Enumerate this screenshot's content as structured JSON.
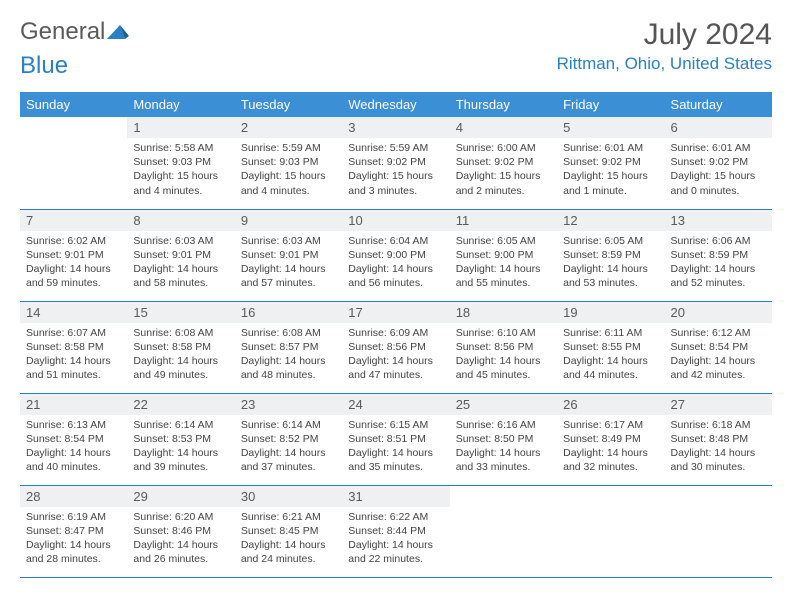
{
  "logo": {
    "text1": "General",
    "text2": "Blue"
  },
  "title": "July 2024",
  "location": "Rittman, Ohio, United States",
  "colors": {
    "header_bg": "#3b8fd4",
    "accent": "#2b7fc3",
    "daynum_bg": "#eef0f2",
    "text": "#444444"
  },
  "daysOfWeek": [
    "Sunday",
    "Monday",
    "Tuesday",
    "Wednesday",
    "Thursday",
    "Friday",
    "Saturday"
  ],
  "weeks": [
    [
      {
        "n": "",
        "l1": "",
        "l2": "",
        "l3": "",
        "l4": ""
      },
      {
        "n": "1",
        "l1": "Sunrise: 5:58 AM",
        "l2": "Sunset: 9:03 PM",
        "l3": "Daylight: 15 hours",
        "l4": "and 4 minutes."
      },
      {
        "n": "2",
        "l1": "Sunrise: 5:59 AM",
        "l2": "Sunset: 9:03 PM",
        "l3": "Daylight: 15 hours",
        "l4": "and 4 minutes."
      },
      {
        "n": "3",
        "l1": "Sunrise: 5:59 AM",
        "l2": "Sunset: 9:02 PM",
        "l3": "Daylight: 15 hours",
        "l4": "and 3 minutes."
      },
      {
        "n": "4",
        "l1": "Sunrise: 6:00 AM",
        "l2": "Sunset: 9:02 PM",
        "l3": "Daylight: 15 hours",
        "l4": "and 2 minutes."
      },
      {
        "n": "5",
        "l1": "Sunrise: 6:01 AM",
        "l2": "Sunset: 9:02 PM",
        "l3": "Daylight: 15 hours",
        "l4": "and 1 minute."
      },
      {
        "n": "6",
        "l1": "Sunrise: 6:01 AM",
        "l2": "Sunset: 9:02 PM",
        "l3": "Daylight: 15 hours",
        "l4": "and 0 minutes."
      }
    ],
    [
      {
        "n": "7",
        "l1": "Sunrise: 6:02 AM",
        "l2": "Sunset: 9:01 PM",
        "l3": "Daylight: 14 hours",
        "l4": "and 59 minutes."
      },
      {
        "n": "8",
        "l1": "Sunrise: 6:03 AM",
        "l2": "Sunset: 9:01 PM",
        "l3": "Daylight: 14 hours",
        "l4": "and 58 minutes."
      },
      {
        "n": "9",
        "l1": "Sunrise: 6:03 AM",
        "l2": "Sunset: 9:01 PM",
        "l3": "Daylight: 14 hours",
        "l4": "and 57 minutes."
      },
      {
        "n": "10",
        "l1": "Sunrise: 6:04 AM",
        "l2": "Sunset: 9:00 PM",
        "l3": "Daylight: 14 hours",
        "l4": "and 56 minutes."
      },
      {
        "n": "11",
        "l1": "Sunrise: 6:05 AM",
        "l2": "Sunset: 9:00 PM",
        "l3": "Daylight: 14 hours",
        "l4": "and 55 minutes."
      },
      {
        "n": "12",
        "l1": "Sunrise: 6:05 AM",
        "l2": "Sunset: 8:59 PM",
        "l3": "Daylight: 14 hours",
        "l4": "and 53 minutes."
      },
      {
        "n": "13",
        "l1": "Sunrise: 6:06 AM",
        "l2": "Sunset: 8:59 PM",
        "l3": "Daylight: 14 hours",
        "l4": "and 52 minutes."
      }
    ],
    [
      {
        "n": "14",
        "l1": "Sunrise: 6:07 AM",
        "l2": "Sunset: 8:58 PM",
        "l3": "Daylight: 14 hours",
        "l4": "and 51 minutes."
      },
      {
        "n": "15",
        "l1": "Sunrise: 6:08 AM",
        "l2": "Sunset: 8:58 PM",
        "l3": "Daylight: 14 hours",
        "l4": "and 49 minutes."
      },
      {
        "n": "16",
        "l1": "Sunrise: 6:08 AM",
        "l2": "Sunset: 8:57 PM",
        "l3": "Daylight: 14 hours",
        "l4": "and 48 minutes."
      },
      {
        "n": "17",
        "l1": "Sunrise: 6:09 AM",
        "l2": "Sunset: 8:56 PM",
        "l3": "Daylight: 14 hours",
        "l4": "and 47 minutes."
      },
      {
        "n": "18",
        "l1": "Sunrise: 6:10 AM",
        "l2": "Sunset: 8:56 PM",
        "l3": "Daylight: 14 hours",
        "l4": "and 45 minutes."
      },
      {
        "n": "19",
        "l1": "Sunrise: 6:11 AM",
        "l2": "Sunset: 8:55 PM",
        "l3": "Daylight: 14 hours",
        "l4": "and 44 minutes."
      },
      {
        "n": "20",
        "l1": "Sunrise: 6:12 AM",
        "l2": "Sunset: 8:54 PM",
        "l3": "Daylight: 14 hours",
        "l4": "and 42 minutes."
      }
    ],
    [
      {
        "n": "21",
        "l1": "Sunrise: 6:13 AM",
        "l2": "Sunset: 8:54 PM",
        "l3": "Daylight: 14 hours",
        "l4": "and 40 minutes."
      },
      {
        "n": "22",
        "l1": "Sunrise: 6:14 AM",
        "l2": "Sunset: 8:53 PM",
        "l3": "Daylight: 14 hours",
        "l4": "and 39 minutes."
      },
      {
        "n": "23",
        "l1": "Sunrise: 6:14 AM",
        "l2": "Sunset: 8:52 PM",
        "l3": "Daylight: 14 hours",
        "l4": "and 37 minutes."
      },
      {
        "n": "24",
        "l1": "Sunrise: 6:15 AM",
        "l2": "Sunset: 8:51 PM",
        "l3": "Daylight: 14 hours",
        "l4": "and 35 minutes."
      },
      {
        "n": "25",
        "l1": "Sunrise: 6:16 AM",
        "l2": "Sunset: 8:50 PM",
        "l3": "Daylight: 14 hours",
        "l4": "and 33 minutes."
      },
      {
        "n": "26",
        "l1": "Sunrise: 6:17 AM",
        "l2": "Sunset: 8:49 PM",
        "l3": "Daylight: 14 hours",
        "l4": "and 32 minutes."
      },
      {
        "n": "27",
        "l1": "Sunrise: 6:18 AM",
        "l2": "Sunset: 8:48 PM",
        "l3": "Daylight: 14 hours",
        "l4": "and 30 minutes."
      }
    ],
    [
      {
        "n": "28",
        "l1": "Sunrise: 6:19 AM",
        "l2": "Sunset: 8:47 PM",
        "l3": "Daylight: 14 hours",
        "l4": "and 28 minutes."
      },
      {
        "n": "29",
        "l1": "Sunrise: 6:20 AM",
        "l2": "Sunset: 8:46 PM",
        "l3": "Daylight: 14 hours",
        "l4": "and 26 minutes."
      },
      {
        "n": "30",
        "l1": "Sunrise: 6:21 AM",
        "l2": "Sunset: 8:45 PM",
        "l3": "Daylight: 14 hours",
        "l4": "and 24 minutes."
      },
      {
        "n": "31",
        "l1": "Sunrise: 6:22 AM",
        "l2": "Sunset: 8:44 PM",
        "l3": "Daylight: 14 hours",
        "l4": "and 22 minutes."
      },
      {
        "n": "",
        "l1": "",
        "l2": "",
        "l3": "",
        "l4": ""
      },
      {
        "n": "",
        "l1": "",
        "l2": "",
        "l3": "",
        "l4": ""
      },
      {
        "n": "",
        "l1": "",
        "l2": "",
        "l3": "",
        "l4": ""
      }
    ]
  ]
}
